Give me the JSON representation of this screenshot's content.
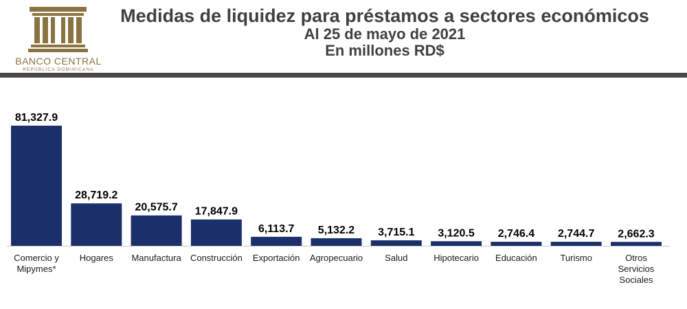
{
  "brand": {
    "name": "BANCO CENTRAL",
    "subname": "REPÚBLICA DOMINICANA",
    "gold": "#8a7340"
  },
  "header": {
    "title": "Medidas de liquidez para préstamos a sectores económicos",
    "date_line": "Al 25 de mayo de 2021",
    "units_line": "En millones RD$"
  },
  "colors": {
    "bar": "#1b2f6b",
    "axis": "#c8c8c8",
    "rule": "#474747"
  },
  "chart_data": {
    "type": "bar",
    "title": "Medidas de liquidez para préstamos a sectores económicos",
    "subtitle": "Al 25 de mayo de 2021 — En millones RD$",
    "categories": [
      [
        "Comercio y",
        "Mipymes*"
      ],
      [
        "Hogares"
      ],
      [
        "Manufactura"
      ],
      [
        "Construcción"
      ],
      [
        "Exportación"
      ],
      [
        "Agropecuario"
      ],
      [
        "Salud"
      ],
      [
        "Hipotecario"
      ],
      [
        "Educación"
      ],
      [
        "Turismo"
      ],
      [
        "Otros",
        "Servicios",
        "Sociales"
      ]
    ],
    "values": [
      81327.9,
      28719.2,
      20575.7,
      17847.9,
      6113.7,
      5132.2,
      3715.1,
      3120.5,
      2746.4,
      2744.7,
      2662.3
    ],
    "labels": [
      "81,327.9",
      "28,719.2",
      "20,575.7",
      "17,847.9",
      "6,113.7",
      "5,132.2",
      "3,715.1",
      "3,120.5",
      "2,746.4",
      "2,744.7",
      "2,662.3"
    ],
    "ylim": [
      0,
      81327.9
    ],
    "grid": false,
    "legend": "none"
  }
}
